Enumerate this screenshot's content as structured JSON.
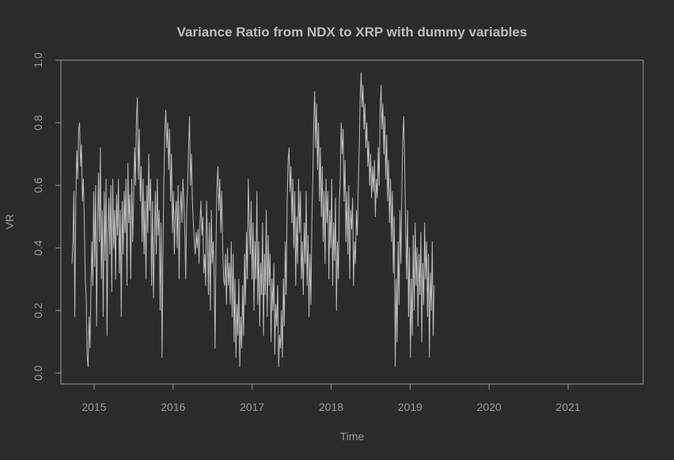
{
  "chart_data": {
    "type": "line",
    "title": "Variance Ratio from NDX to XRP with dummy variables",
    "xlabel": "Time",
    "ylabel": "VR",
    "xlim": [
      2014.58,
      2021.95
    ],
    "ylim": [
      -0.035,
      1.0
    ],
    "x_ticks": [
      2015,
      2016,
      2017,
      2018,
      2019,
      2020,
      2021
    ],
    "x_tick_labels": [
      "2015",
      "2016",
      "2017",
      "2018",
      "2019",
      "2020",
      "2021"
    ],
    "y_ticks": [
      0.0,
      0.2,
      0.4,
      0.6,
      0.8,
      1.0
    ],
    "y_tick_labels": [
      "0.0",
      "0.2",
      "0.4",
      "0.6",
      "0.8",
      "1.0"
    ],
    "grid": false,
    "legend": "none",
    "colors": {
      "background": "#2b2b2b",
      "line": "#bdbdbd",
      "axis": "#9a9a9a"
    },
    "series": [
      {
        "x_start": 2014.72,
        "x_step": 0.012,
        "values": [
          0.35,
          0.42,
          0.58,
          0.18,
          0.55,
          0.71,
          0.62,
          0.78,
          0.8,
          0.66,
          0.73,
          0.55,
          0.62,
          0.48,
          0.3,
          0.24,
          0.05,
          0.02,
          0.18,
          0.08,
          0.26,
          0.42,
          0.28,
          0.58,
          0.34,
          0.6,
          0.15,
          0.47,
          0.64,
          0.42,
          0.72,
          0.3,
          0.52,
          0.18,
          0.58,
          0.36,
          0.62,
          0.12,
          0.45,
          0.56,
          0.38,
          0.6,
          0.26,
          0.62,
          0.4,
          0.52,
          0.3,
          0.57,
          0.44,
          0.62,
          0.32,
          0.52,
          0.18,
          0.55,
          0.38,
          0.58,
          0.45,
          0.62,
          0.28,
          0.67,
          0.48,
          0.57,
          0.3,
          0.62,
          0.42,
          0.55,
          0.72,
          0.6,
          0.82,
          0.88,
          0.62,
          0.78,
          0.55,
          0.66,
          0.42,
          0.62,
          0.38,
          0.55,
          0.3,
          0.6,
          0.45,
          0.7,
          0.52,
          0.62,
          0.28,
          0.55,
          0.24,
          0.42,
          0.58,
          0.38,
          0.62,
          0.44,
          0.52,
          0.2,
          0.48,
          0.05,
          0.4,
          0.62,
          0.78,
          0.84,
          0.72,
          0.8,
          0.65,
          0.78,
          0.55,
          0.7,
          0.45,
          0.58,
          0.38,
          0.5,
          0.55,
          0.4,
          0.6,
          0.3,
          0.52,
          0.58,
          0.48,
          0.62,
          0.55,
          0.45,
          0.3,
          0.52,
          0.6,
          0.72,
          0.82,
          0.6,
          0.7,
          0.55,
          0.48,
          0.42,
          0.38,
          0.45,
          0.4,
          0.46,
          0.35,
          0.48,
          0.55,
          0.44,
          0.5,
          0.32,
          0.38,
          0.28,
          0.55,
          0.42,
          0.25,
          0.48,
          0.2,
          0.52,
          0.35,
          0.42,
          0.3,
          0.08,
          0.42,
          0.6,
          0.66,
          0.52,
          0.62,
          0.45,
          0.58,
          0.4,
          0.3,
          0.28,
          0.38,
          0.22,
          0.4,
          0.28,
          0.35,
          0.22,
          0.42,
          0.18,
          0.38,
          0.1,
          0.3,
          0.05,
          0.22,
          0.12,
          0.3,
          0.02,
          0.18,
          0.08,
          0.28,
          0.12,
          0.38,
          0.22,
          0.45,
          0.3,
          0.62,
          0.48,
          0.38,
          0.55,
          0.3,
          0.48,
          0.2,
          0.42,
          0.3,
          0.58,
          0.22,
          0.42,
          0.15,
          0.35,
          0.25,
          0.48,
          0.12,
          0.38,
          0.25,
          0.52,
          0.18,
          0.44,
          0.28,
          0.38,
          0.1,
          0.3,
          0.2,
          0.35,
          0.06,
          0.22,
          0.15,
          0.28,
          0.02,
          0.12,
          0.08,
          0.2,
          0.05,
          0.3,
          0.15,
          0.42,
          0.25,
          0.55,
          0.68,
          0.72,
          0.58,
          0.66,
          0.48,
          0.62,
          0.4,
          0.58,
          0.28,
          0.5,
          0.35,
          0.62,
          0.45,
          0.58,
          0.3,
          0.42,
          0.25,
          0.48,
          0.35,
          0.58,
          0.28,
          0.44,
          0.18,
          0.38,
          0.22,
          0.48,
          0.62,
          0.8,
          0.9,
          0.72,
          0.86,
          0.65,
          0.8,
          0.55,
          0.72,
          0.5,
          0.66,
          0.42,
          0.58,
          0.35,
          0.62,
          0.48,
          0.58,
          0.3,
          0.52,
          0.4,
          0.62,
          0.28,
          0.48,
          0.36,
          0.56,
          0.2,
          0.42,
          0.3,
          0.54,
          0.62,
          0.8,
          0.7,
          0.78,
          0.55,
          0.68,
          0.42,
          0.58,
          0.38,
          0.6,
          0.3,
          0.52,
          0.46,
          0.56,
          0.28,
          0.42,
          0.35,
          0.52,
          0.44,
          0.6,
          0.72,
          0.88,
          0.96,
          0.85,
          0.92,
          0.78,
          0.86,
          0.72,
          0.8,
          0.66,
          0.74,
          0.6,
          0.7,
          0.56,
          0.66,
          0.58,
          0.68,
          0.5,
          0.62,
          0.56,
          0.72,
          0.6,
          0.84,
          0.92,
          0.78,
          0.86,
          0.7,
          0.82,
          0.62,
          0.76,
          0.55,
          0.68,
          0.48,
          0.62,
          0.42,
          0.58,
          0.32,
          0.5,
          0.02,
          0.3,
          0.1,
          0.42,
          0.22,
          0.52,
          0.35,
          0.6,
          0.75,
          0.82,
          0.66,
          0.45,
          0.3,
          0.52,
          0.18,
          0.4,
          0.05,
          0.3,
          0.12,
          0.44,
          0.2,
          0.48,
          0.28,
          0.4,
          0.15,
          0.38,
          0.25,
          0.45,
          0.1,
          0.35,
          0.22,
          0.48,
          0.3,
          0.42,
          0.18,
          0.38,
          0.05,
          0.32,
          0.2,
          0.42,
          0.12,
          0.28
        ]
      }
    ]
  }
}
